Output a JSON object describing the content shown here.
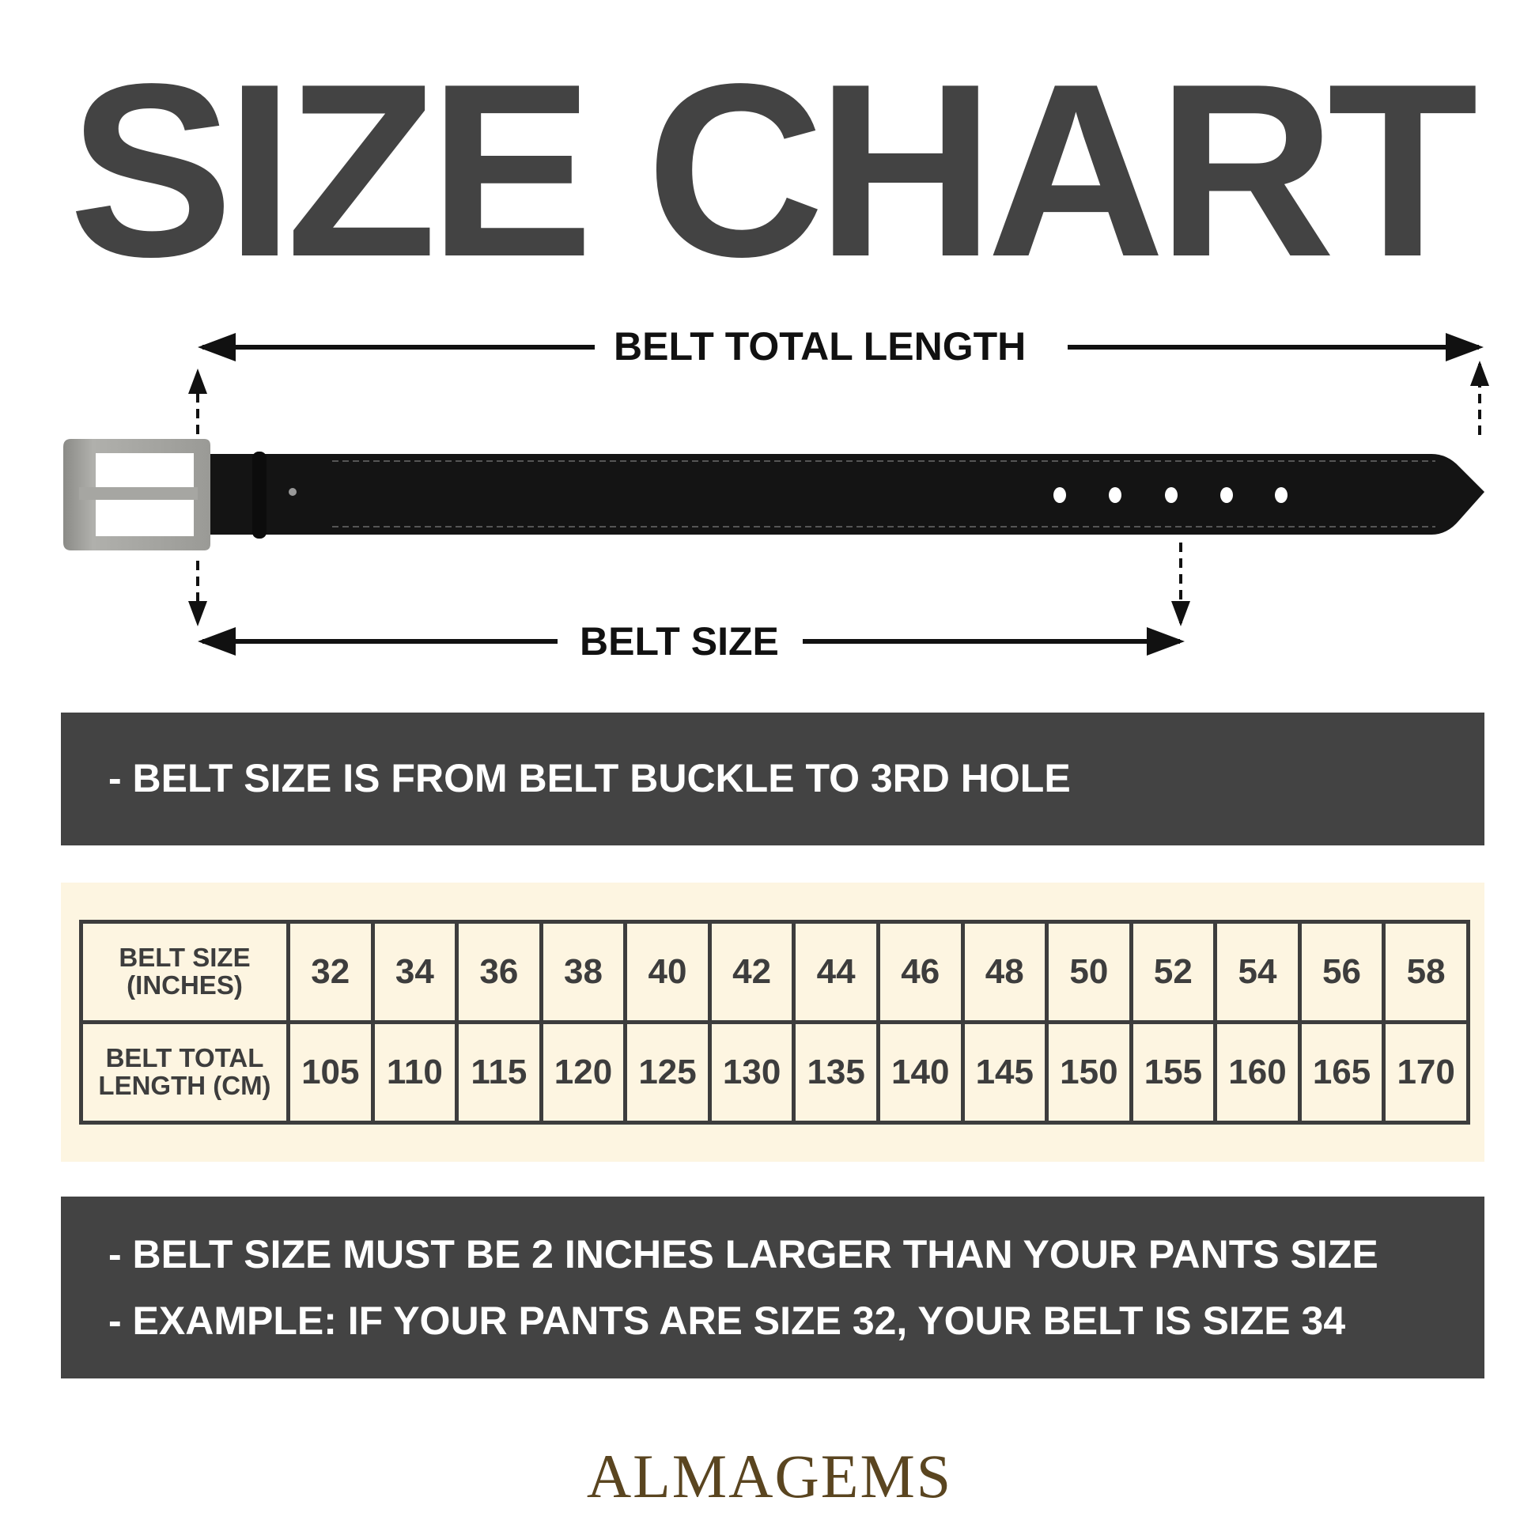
{
  "title": "SIZE CHART",
  "diagram": {
    "total_length_label": "BELT TOTAL LENGTH",
    "belt_size_label": "BELT SIZE",
    "hole_count": 5
  },
  "note_top": "- BELT SIZE IS FROM BELT BUCKLE TO 3RD HOLE",
  "table": {
    "row_headers": [
      "BELT SIZE\n(INCHES)",
      "BELT TOTAL\nLENGTH (CM)"
    ],
    "row_header_lines": [
      [
        "BELT SIZE",
        "(INCHES)"
      ],
      [
        "BELT TOTAL",
        "LENGTH (CM)"
      ]
    ],
    "sizes_inches": [
      "32",
      "34",
      "36",
      "38",
      "40",
      "42",
      "44",
      "46",
      "48",
      "50",
      "52",
      "54",
      "56",
      "58"
    ],
    "total_length_cm": [
      "105",
      "110",
      "115",
      "120",
      "125",
      "130",
      "135",
      "140",
      "145",
      "150",
      "155",
      "160",
      "165",
      "170"
    ]
  },
  "notes_bottom": [
    "- BELT SIZE MUST BE 2 INCHES LARGER THAN YOUR PANTS SIZE",
    "- EXAMPLE: IF YOUR PANTS ARE SIZE 32, YOUR BELT IS SIZE 34"
  ],
  "brand": "ALMAGEMS",
  "colors": {
    "dark": "#434343",
    "cream": "#fdf5e1",
    "brand": "#5a4520"
  }
}
